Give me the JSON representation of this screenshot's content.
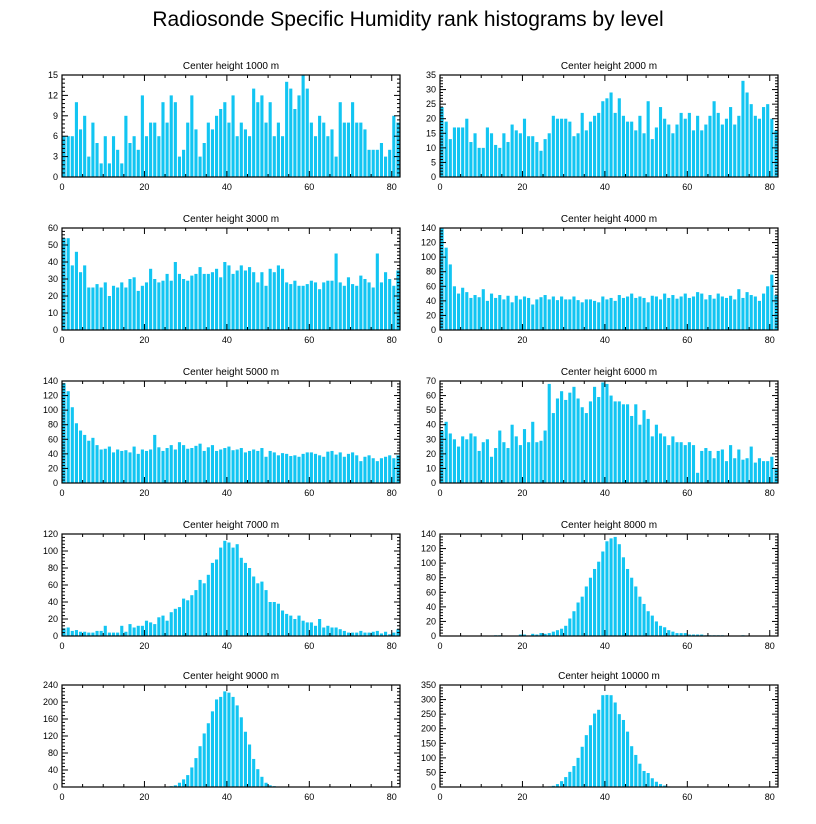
{
  "title": "Radiosonde Specific Humidity rank histograms by level",
  "colors": {
    "bar": "#12c5f2",
    "axis": "#000000",
    "background": "#ffffff"
  },
  "chart_data": [
    {
      "type": "bar",
      "title": "Center height 1000 m",
      "xlim": [
        0,
        82
      ],
      "ylim": [
        0,
        15
      ],
      "xticks": [
        0,
        20,
        40,
        60,
        80
      ],
      "yticks": [
        0,
        3,
        6,
        9,
        12,
        15
      ],
      "values": [
        6,
        6,
        6,
        11,
        7,
        9,
        3,
        8,
        5,
        2,
        6,
        2,
        6,
        4,
        2,
        9,
        5,
        6,
        4,
        12,
        6,
        8,
        8,
        6,
        11,
        8,
        12,
        11,
        3,
        4,
        8,
        12,
        7,
        3,
        5,
        8,
        7,
        9,
        10,
        11,
        8,
        12,
        6,
        8,
        7,
        6,
        13,
        11,
        12,
        8,
        11,
        6,
        8,
        6,
        14,
        13,
        10,
        12,
        15,
        13,
        8,
        6,
        9,
        8,
        6,
        7,
        3,
        11,
        8,
        8,
        11,
        8,
        8,
        7,
        4,
        4,
        4,
        5,
        3,
        4,
        9,
        8
      ]
    },
    {
      "type": "bar",
      "title": "Center height 2000 m",
      "xlim": [
        0,
        82
      ],
      "ylim": [
        0,
        35
      ],
      "xticks": [
        0,
        20,
        40,
        60,
        80
      ],
      "yticks": [
        0,
        5,
        10,
        15,
        20,
        25,
        30,
        35
      ],
      "values": [
        24,
        19,
        13,
        17,
        17,
        17,
        20,
        12,
        15,
        10,
        10,
        17,
        15,
        11,
        10,
        15,
        12,
        18,
        16,
        15,
        20,
        14,
        14,
        12,
        9,
        13,
        15,
        21,
        20,
        20,
        20,
        19,
        14,
        15,
        22,
        16,
        19,
        21,
        22,
        26,
        27,
        29,
        22,
        27,
        21,
        19,
        19,
        16,
        21,
        15,
        26,
        13,
        17,
        24,
        20,
        18,
        15,
        18,
        22,
        20,
        22,
        16,
        21,
        16,
        18,
        21,
        26,
        22,
        18,
        20,
        24,
        18,
        21,
        33,
        29,
        25,
        21,
        20,
        24,
        25,
        20,
        16
      ]
    },
    {
      "type": "bar",
      "title": "Center height 3000 m",
      "xlim": [
        0,
        82
      ],
      "ylim": [
        0,
        60
      ],
      "xticks": [
        0,
        20,
        40,
        60,
        80
      ],
      "yticks": [
        0,
        10,
        20,
        30,
        40,
        50,
        60
      ],
      "values": [
        54,
        54,
        38,
        46,
        34,
        38,
        25,
        25,
        27,
        25,
        28,
        20,
        26,
        25,
        28,
        25,
        30,
        31,
        23,
        26,
        28,
        36,
        30,
        28,
        29,
        33,
        29,
        40,
        33,
        30,
        29,
        32,
        33,
        37,
        33,
        33,
        34,
        36,
        31,
        40,
        38,
        33,
        35,
        38,
        35,
        37,
        34,
        28,
        34,
        26,
        36,
        34,
        38,
        36,
        28,
        27,
        29,
        26,
        26,
        27,
        29,
        28,
        24,
        28,
        29,
        29,
        45,
        28,
        26,
        31,
        27,
        26,
        32,
        30,
        28,
        25,
        45,
        28,
        34,
        30,
        26,
        35
      ]
    },
    {
      "type": "bar",
      "title": "Center height 4000 m",
      "xlim": [
        0,
        82
      ],
      "ylim": [
        0,
        140
      ],
      "xticks": [
        0,
        20,
        40,
        60,
        80
      ],
      "yticks": [
        0,
        20,
        40,
        60,
        80,
        100,
        120,
        140
      ],
      "values": [
        140,
        113,
        90,
        60,
        50,
        58,
        52,
        44,
        48,
        45,
        56,
        40,
        50,
        44,
        48,
        42,
        47,
        38,
        47,
        42,
        46,
        44,
        35,
        42,
        45,
        48,
        42,
        46,
        41,
        46,
        42,
        42,
        46,
        41,
        38,
        42,
        42,
        40,
        38,
        46,
        42,
        44,
        40,
        48,
        44,
        46,
        50,
        44,
        46,
        44,
        38,
        47,
        46,
        42,
        50,
        44,
        48,
        43,
        46,
        50,
        44,
        46,
        52,
        50,
        42,
        48,
        43,
        50,
        46,
        44,
        47,
        42,
        56,
        44,
        52,
        48,
        46,
        40,
        50,
        60,
        76,
        48
      ]
    },
    {
      "type": "bar",
      "title": "Center height 5000 m",
      "xlim": [
        0,
        82
      ],
      "ylim": [
        0,
        140
      ],
      "xticks": [
        0,
        20,
        40,
        60,
        80
      ],
      "yticks": [
        0,
        20,
        40,
        60,
        80,
        100,
        120,
        140
      ],
      "values": [
        137,
        126,
        104,
        82,
        72,
        66,
        58,
        62,
        52,
        46,
        47,
        50,
        42,
        46,
        44,
        45,
        42,
        50,
        40,
        46,
        44,
        46,
        66,
        49,
        44,
        48,
        52,
        46,
        56,
        52,
        47,
        48,
        51,
        54,
        44,
        49,
        52,
        44,
        46,
        48,
        50,
        45,
        46,
        48,
        42,
        44,
        46,
        44,
        48,
        36,
        44,
        42,
        38,
        41,
        40,
        37,
        38,
        36,
        40,
        42,
        42,
        40,
        38,
        36,
        43,
        44,
        39,
        42,
        36,
        40,
        42,
        38,
        30,
        36,
        38,
        34,
        30,
        34,
        36,
        38,
        34,
        38
      ]
    },
    {
      "type": "bar",
      "title": "Center height 6000 m",
      "xlim": [
        0,
        82
      ],
      "ylim": [
        0,
        70
      ],
      "xticks": [
        0,
        20,
        40,
        60,
        80
      ],
      "yticks": [
        0,
        10,
        20,
        30,
        40,
        50,
        60,
        70
      ],
      "values": [
        36,
        42,
        34,
        30,
        25,
        32,
        30,
        34,
        32,
        22,
        28,
        30,
        18,
        24,
        36,
        28,
        24,
        40,
        32,
        26,
        37,
        28,
        42,
        28,
        29,
        36,
        68,
        48,
        58,
        63,
        57,
        62,
        66,
        58,
        52,
        48,
        56,
        66,
        59,
        69,
        68,
        60,
        56,
        56,
        54,
        54,
        46,
        54,
        40,
        50,
        44,
        32,
        40,
        34,
        32,
        26,
        32,
        28,
        28,
        26,
        28,
        26,
        7,
        22,
        24,
        22,
        17,
        22,
        23,
        15,
        26,
        17,
        23,
        16,
        17,
        25,
        14,
        17,
        15,
        15,
        18,
        10
      ]
    },
    {
      "type": "bar",
      "title": "Center height 7000 m",
      "xlim": [
        0,
        82
      ],
      "ylim": [
        0,
        120
      ],
      "xticks": [
        0,
        20,
        40,
        60,
        80
      ],
      "yticks": [
        0,
        20,
        40,
        60,
        80,
        100,
        120
      ],
      "values": [
        9,
        10,
        6,
        7,
        5,
        5,
        4,
        4,
        6,
        6,
        12,
        4,
        4,
        4,
        12,
        5,
        14,
        10,
        12,
        12,
        18,
        16,
        14,
        22,
        24,
        18,
        28,
        32,
        34,
        44,
        42,
        48,
        54,
        66,
        62,
        72,
        86,
        90,
        104,
        112,
        110,
        104,
        108,
        92,
        86,
        80,
        70,
        62,
        64,
        54,
        40,
        40,
        38,
        30,
        26,
        24,
        20,
        24,
        18,
        16,
        16,
        12,
        20,
        10,
        12,
        10,
        10,
        8,
        6,
        4,
        4,
        4,
        6,
        4,
        4,
        5,
        6,
        3,
        5,
        2,
        4,
        8
      ]
    },
    {
      "type": "bar",
      "title": "Center height 8000 m",
      "xlim": [
        0,
        82
      ],
      "ylim": [
        0,
        140
      ],
      "xticks": [
        0,
        20,
        40,
        60,
        80
      ],
      "yticks": [
        0,
        20,
        40,
        60,
        80,
        100,
        120,
        140
      ],
      "values": [
        0,
        0,
        0,
        0,
        0,
        0,
        0,
        0,
        0,
        0,
        0,
        0,
        0,
        1,
        1,
        0,
        0,
        0,
        0,
        2,
        2,
        0,
        3,
        2,
        4,
        3,
        4,
        6,
        8,
        10,
        14,
        24,
        34,
        46,
        54,
        68,
        80,
        92,
        102,
        116,
        130,
        134,
        136,
        126,
        108,
        92,
        80,
        68,
        54,
        44,
        34,
        28,
        20,
        14,
        12,
        8,
        6,
        4,
        4,
        4,
        2,
        2,
        2,
        2,
        1,
        1,
        1,
        1,
        1,
        0,
        0,
        0,
        0,
        1,
        0,
        0,
        0,
        0,
        0,
        0,
        0,
        0
      ]
    },
    {
      "type": "bar",
      "title": "Center height 9000 m",
      "xlim": [
        0,
        82
      ],
      "ylim": [
        0,
        240
      ],
      "xticks": [
        0,
        20,
        40,
        60,
        80
      ],
      "yticks": [
        0,
        40,
        80,
        120,
        160,
        200,
        240
      ],
      "values": [
        0,
        0,
        0,
        0,
        0,
        0,
        0,
        0,
        0,
        0,
        0,
        0,
        0,
        0,
        0,
        0,
        0,
        0,
        0,
        0,
        0,
        0,
        0,
        0,
        0,
        0,
        2,
        4,
        10,
        18,
        28,
        46,
        68,
        96,
        126,
        150,
        178,
        206,
        212,
        225,
        222,
        212,
        192,
        164,
        130,
        100,
        66,
        42,
        24,
        10,
        4,
        2,
        1,
        0,
        0,
        0,
        0,
        0,
        0,
        0,
        0,
        0,
        0,
        0,
        0,
        0,
        0,
        0,
        0,
        0,
        0,
        0,
        0,
        0,
        0,
        0,
        0,
        0,
        0,
        0,
        0,
        0
      ]
    },
    {
      "type": "bar",
      "title": "Center height 10000 m",
      "xlim": [
        0,
        82
      ],
      "ylim": [
        0,
        350
      ],
      "xticks": [
        0,
        20,
        40,
        60,
        80
      ],
      "yticks": [
        0,
        50,
        100,
        150,
        200,
        250,
        300,
        350
      ],
      "values": [
        0,
        0,
        0,
        0,
        0,
        0,
        0,
        0,
        0,
        0,
        0,
        0,
        0,
        0,
        0,
        0,
        0,
        0,
        0,
        0,
        0,
        0,
        0,
        0,
        0,
        0,
        2,
        4,
        10,
        20,
        34,
        52,
        72,
        100,
        138,
        178,
        212,
        252,
        265,
        315,
        316,
        315,
        290,
        250,
        230,
        190,
        140,
        110,
        80,
        55,
        48,
        30,
        18,
        10,
        5,
        2,
        1,
        0,
        0,
        0,
        0,
        0,
        0,
        0,
        0,
        0,
        0,
        0,
        0,
        0,
        0,
        0,
        0,
        0,
        0,
        0,
        0,
        0,
        0,
        0,
        0,
        0
      ]
    }
  ]
}
